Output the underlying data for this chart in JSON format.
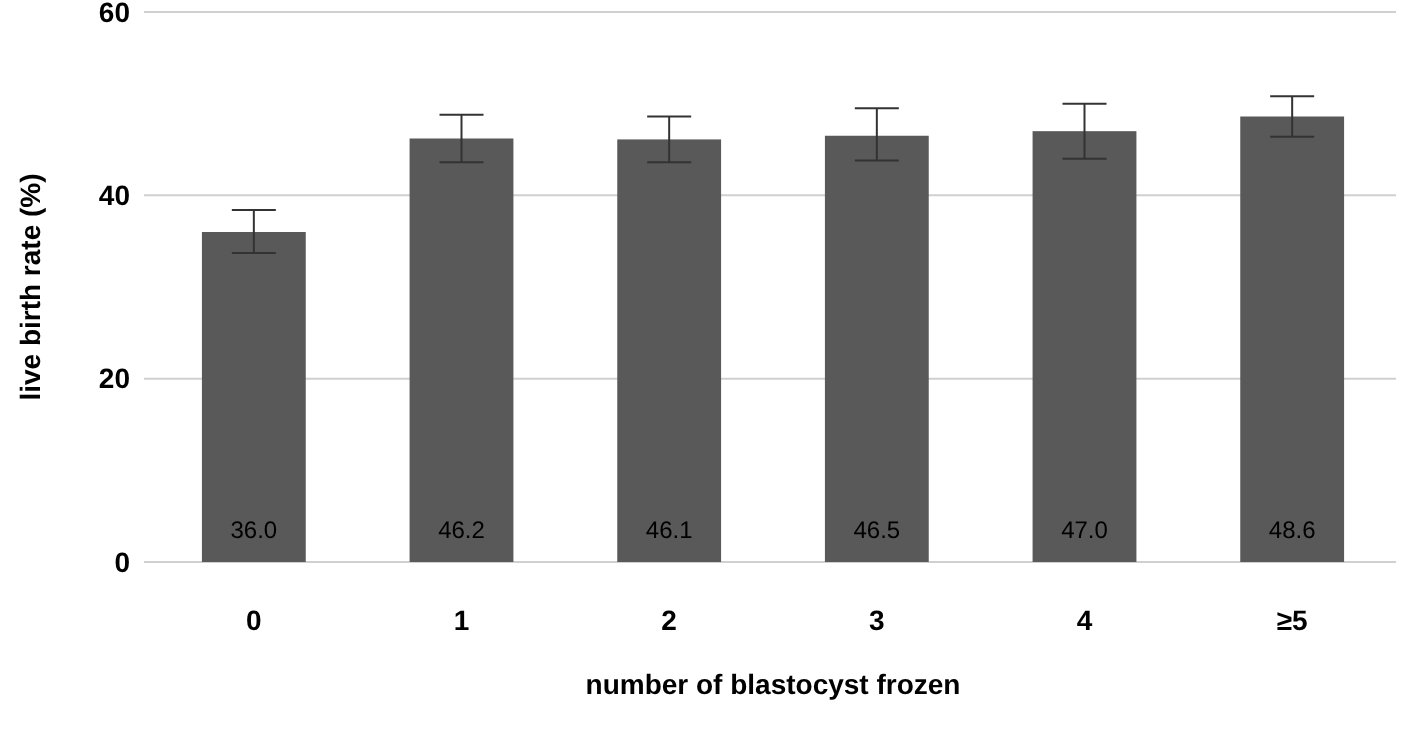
{
  "chart_data": {
    "type": "bar",
    "xlabel": "number of blastocyst frozen",
    "ylabel": "live birth rate (%)",
    "categories": [
      "0",
      "1",
      "2",
      "3",
      "4",
      "≥5"
    ],
    "values": [
      36.0,
      46.2,
      46.1,
      46.5,
      47.0,
      48.6
    ],
    "errors": [
      [
        33.7,
        38.4
      ],
      [
        43.6,
        48.8
      ],
      [
        43.6,
        48.6
      ],
      [
        43.8,
        49.5
      ],
      [
        44.0,
        50.0
      ],
      [
        46.4,
        50.8
      ]
    ],
    "value_labels": [
      "36.0",
      "46.2",
      "46.1",
      "46.5",
      "47.0",
      "48.6"
    ],
    "color": "#595959",
    "ylim": [
      0,
      60
    ],
    "yticks": [
      0,
      20,
      40,
      60
    ],
    "grid": "y"
  }
}
